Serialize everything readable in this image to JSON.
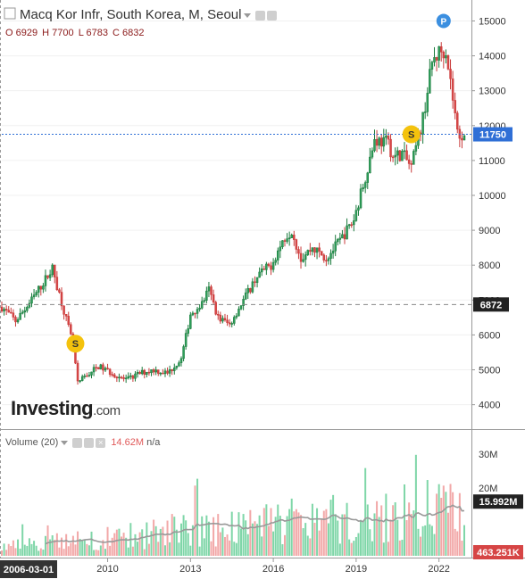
{
  "header": {
    "title": "Macq Kor Infr, South Korea, M, Seoul",
    "ohlc": {
      "o": "O 6929",
      "h": "H 7700",
      "l": "L 6783",
      "c": "C 6832"
    }
  },
  "volume_header": {
    "label": "Volume (20)",
    "value": "14.62M",
    "ma": "n/a"
  },
  "brand": {
    "name": "Investing",
    "domain": ".com"
  },
  "colors": {
    "up": "#1a7a3c",
    "down": "#c93b3b",
    "vol_up": "#7fd6a8",
    "vol_down": "#f2a8a8",
    "ma": "#999999",
    "current": "#2f6fd6"
  },
  "chart_data": [
    {
      "type": "candlestick",
      "title": "Macq Kor Infr, South Korea, M, Seoul",
      "x_ticks": [
        "2010",
        "2013",
        "2016",
        "2019",
        "2022"
      ],
      "x_start_label": "2006-03-01",
      "y_ticks": [
        4000,
        5000,
        6000,
        7000,
        8000,
        9000,
        10000,
        11000,
        12000,
        13000,
        14000,
        15000
      ],
      "ylim": [
        3300,
        15600
      ],
      "current_price": "11750",
      "reference_line": "6872",
      "markers": [
        {
          "label": "S",
          "x": "2008-11",
          "y": 5750
        },
        {
          "label": "S",
          "x": "2021-01",
          "y": 11750
        },
        {
          "label": "P",
          "x": "2022-03",
          "y": 15000
        }
      ],
      "anchors": [
        [
          "2006-03",
          6800
        ],
        [
          "2006-09",
          6400
        ],
        [
          "2007-03",
          6900
        ],
        [
          "2007-09",
          7500
        ],
        [
          "2008-01",
          7900
        ],
        [
          "2008-06",
          6700
        ],
        [
          "2008-10",
          5700
        ],
        [
          "2008-12",
          4600
        ],
        [
          "2009-03",
          4800
        ],
        [
          "2009-09",
          5100
        ],
        [
          "2010-03",
          4900
        ],
        [
          "2010-09",
          4700
        ],
        [
          "2011-03",
          4900
        ],
        [
          "2011-09",
          5000
        ],
        [
          "2012-03",
          4900
        ],
        [
          "2012-09",
          5300
        ],
        [
          "2013-01",
          6600
        ],
        [
          "2013-06",
          6900
        ],
        [
          "2013-09",
          7300
        ],
        [
          "2014-01",
          6500
        ],
        [
          "2014-06",
          6300
        ],
        [
          "2014-12",
          7000
        ],
        [
          "2015-06",
          7700
        ],
        [
          "2015-12",
          8000
        ],
        [
          "2016-06",
          8800
        ],
        [
          "2016-09",
          9000
        ],
        [
          "2017-01",
          8200
        ],
        [
          "2017-06",
          8500
        ],
        [
          "2017-12",
          8200
        ],
        [
          "2018-06",
          8700
        ],
        [
          "2018-12",
          9300
        ],
        [
          "2019-06",
          10800
        ],
        [
          "2019-09",
          11600
        ],
        [
          "2020-03",
          11500
        ],
        [
          "2020-05",
          11100
        ],
        [
          "2020-09",
          11200
        ],
        [
          "2021-01",
          10800
        ],
        [
          "2021-06",
          12200
        ],
        [
          "2021-10",
          13800
        ],
        [
          "2022-01",
          14100
        ],
        [
          "2022-04",
          14200
        ],
        [
          "2022-07",
          12800
        ],
        [
          "2022-09",
          11800
        ],
        [
          "2022-10",
          11750
        ]
      ]
    },
    {
      "type": "bar",
      "title": "Volume (20)",
      "y_ticks": [
        "20M",
        "30M"
      ],
      "ylim": [
        0,
        35000000
      ],
      "current_volume": "463.251K",
      "ma_value": "15.992M"
    }
  ]
}
